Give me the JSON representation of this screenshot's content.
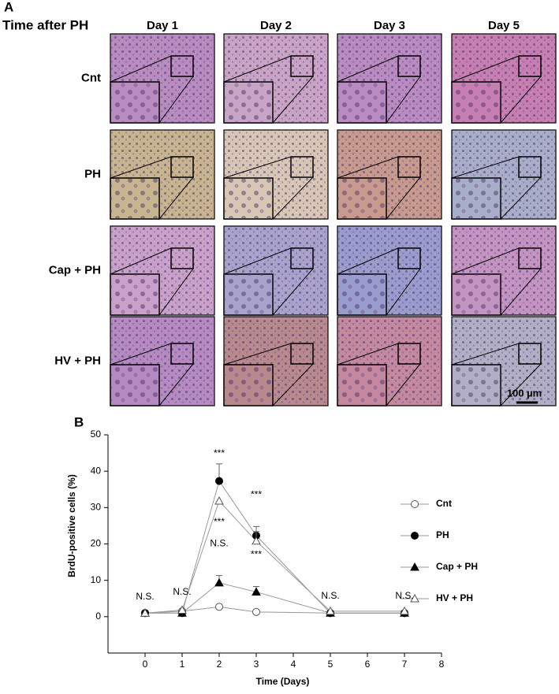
{
  "panel_a": {
    "label": "A",
    "heading": "Time after PH",
    "columns": [
      "Day 1",
      "Day 2",
      "Day 3",
      "Day 5"
    ],
    "rows": [
      "Cnt",
      "PH",
      "Cap + PH",
      "HV + PH"
    ],
    "scale_bar": "100 µm"
  },
  "panel_b": {
    "label": "B"
  },
  "chart_data": {
    "type": "line",
    "x_label": "Time (Days)",
    "y_label": "BrdU-positive cells (%)",
    "x": [
      0,
      1,
      2,
      3,
      5,
      7
    ],
    "xlim": [
      -1,
      8
    ],
    "xticks": [
      0,
      1,
      2,
      3,
      4,
      5,
      6,
      7,
      8
    ],
    "ylim": [
      -10,
      50
    ],
    "yticks": [
      0,
      10,
      20,
      30,
      40,
      50
    ],
    "legend": "right",
    "series": [
      {
        "name": "Cnt",
        "marker": "open-circle",
        "color": "#555555",
        "values": [
          1,
          1.5,
          2.7,
          1.3,
          1,
          1
        ]
      },
      {
        "name": "PH",
        "marker": "filled-circle",
        "color": "#000000",
        "values": [
          1,
          1,
          37.3,
          22.3,
          1,
          1
        ],
        "errors": [
          null,
          null,
          4.7,
          2.5,
          null,
          null
        ]
      },
      {
        "name": "Cap + PH",
        "marker": "filled-triangle",
        "color": "#000000",
        "values": [
          1,
          1,
          9.3,
          6.8,
          1,
          1
        ],
        "errors": [
          null,
          null,
          2,
          1.5,
          null,
          null
        ]
      },
      {
        "name": "HV + PH",
        "marker": "open-triangle",
        "color": "#555555",
        "values": [
          1,
          1.8,
          31.8,
          20.8,
          1.5,
          1.5
        ],
        "errors": [
          null,
          null,
          null,
          2.6,
          null,
          null
        ]
      }
    ],
    "annotations": [
      {
        "text": "N.S.",
        "x": 0,
        "y": 5.4
      },
      {
        "text": "N.S.",
        "x": 1,
        "y": 6.7
      },
      {
        "text": "***",
        "x": 2,
        "y": 44.8
      },
      {
        "text": "***",
        "x": 2,
        "y": 26
      },
      {
        "text": "N.S.",
        "x": 2,
        "y": 20
      },
      {
        "text": "***",
        "x": 3,
        "y": 33.5
      },
      {
        "text": "***",
        "x": 3,
        "y": 17
      },
      {
        "text": "N.S.",
        "x": 5,
        "y": 5.6
      },
      {
        "text": "N.S.",
        "x": 7,
        "y": 5.6
      }
    ]
  }
}
